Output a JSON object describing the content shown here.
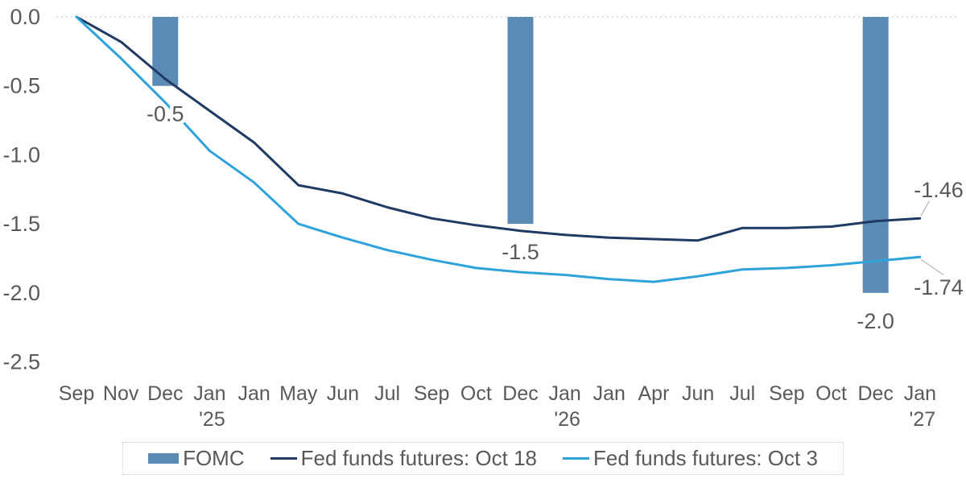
{
  "chart_data": {
    "type": "combo",
    "categories": [
      "Sep",
      "Nov",
      "Dec",
      "Jan",
      "Jan",
      "May",
      "Jun",
      "Jul",
      "Sep",
      "Oct",
      "Dec",
      "Jan",
      "Jan",
      "Apr",
      "Jun",
      "Jul",
      "Sep",
      "Oct",
      "Dec",
      "Jan"
    ],
    "year_labels": [
      {
        "index": 3,
        "label": "'25"
      },
      {
        "index": 11,
        "label": "'26"
      },
      {
        "index": 19,
        "label": "'27"
      }
    ],
    "ylim": [
      -2.5,
      0.0
    ],
    "yticks": [
      0.0,
      -0.5,
      -1.0,
      -1.5,
      -2.0,
      -2.5
    ],
    "ytick_labels": [
      "0.0",
      "-0.5",
      "-1.0",
      "-1.5",
      "-2.0",
      "-2.5"
    ],
    "grid": "dotted-zero-line-only",
    "bars": {
      "name": "FOMC",
      "color": "#5b8ab5",
      "points": [
        {
          "index": 2,
          "category": "Dec",
          "value": -0.5,
          "label": "-0.5"
        },
        {
          "index": 10,
          "category": "Dec",
          "value": -1.5,
          "label": "-1.5"
        },
        {
          "index": 18,
          "category": "Dec",
          "value": -2.0,
          "label": "-2.0"
        }
      ]
    },
    "series": [
      {
        "name": "Fed funds futures: Oct 18",
        "color": "#1f3a63",
        "end_label": "-1.46",
        "values": [
          0.0,
          -0.18,
          -0.45,
          -0.68,
          -0.91,
          -1.22,
          -1.28,
          -1.38,
          -1.46,
          -1.51,
          -1.55,
          -1.58,
          -1.6,
          -1.61,
          -1.62,
          -1.53,
          -1.53,
          -1.52,
          -1.48,
          -1.46
        ]
      },
      {
        "name": "Fed funds futures: Oct 3",
        "color": "#2ea3db",
        "end_label": "-1.74",
        "values": [
          0.0,
          -0.3,
          -0.62,
          -0.97,
          -1.2,
          -1.5,
          -1.6,
          -1.69,
          -1.76,
          -1.82,
          -1.85,
          -1.87,
          -1.9,
          -1.92,
          -1.88,
          -1.83,
          -1.82,
          -1.8,
          -1.77,
          -1.74
        ]
      }
    ],
    "legend_position": "bottom"
  },
  "legend": {
    "items": [
      {
        "label": "FOMC"
      },
      {
        "label": "Fed funds futures: Oct 18"
      },
      {
        "label": "Fed funds futures: Oct 3"
      }
    ]
  },
  "colors": {
    "bar": "#5b8ab5",
    "line_oct18": "#1f3a63",
    "line_oct3": "#2ea3db",
    "text": "#595959",
    "grid": "#d9d9d9",
    "leader": "#a6a6a6",
    "legend_border": "#c9c9c9",
    "background": "#ffffff"
  }
}
